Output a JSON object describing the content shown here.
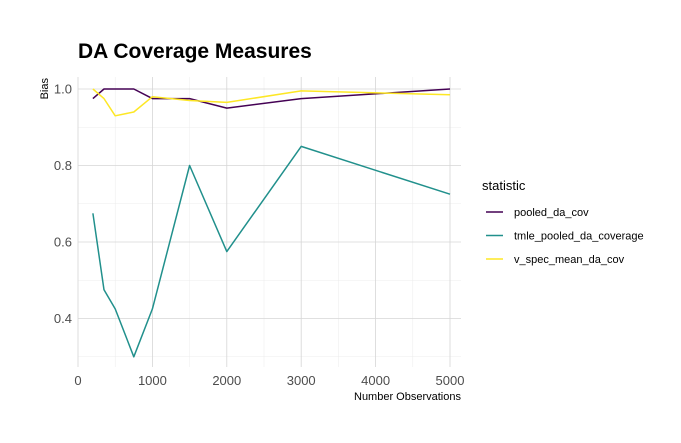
{
  "chart_data": {
    "type": "line",
    "title": "DA Coverage Measures",
    "xlabel": "Number Observations",
    "ylabel": "Bias",
    "xlim": [
      0,
      5200
    ],
    "ylim": [
      0.28,
      1.03
    ],
    "x_ticks": [
      0,
      1000,
      2000,
      3000,
      4000,
      5000
    ],
    "y_ticks": [
      0.4,
      0.6,
      0.8,
      1.0
    ],
    "x_tick_labels": [
      "0",
      "1000",
      "2000",
      "3000",
      "4000",
      "5000"
    ],
    "y_tick_labels": [
      "0.4",
      "0.6",
      "0.8",
      "1.0"
    ],
    "grid": true,
    "legend": {
      "title": "statistic",
      "position": "right"
    },
    "series": [
      {
        "name": "pooled_da_cov",
        "color": "#440154",
        "x": [
          200,
          350,
          500,
          750,
          1000,
          1500,
          2000,
          3000,
          5000
        ],
        "y": [
          0.975,
          1.0,
          1.0,
          1.0,
          0.975,
          0.975,
          0.95,
          0.975,
          1.0
        ]
      },
      {
        "name": "tmle_pooled_da_coverage",
        "color": "#21908C",
        "x": [
          200,
          350,
          500,
          750,
          1000,
          1500,
          2000,
          3000,
          5000
        ],
        "y": [
          0.675,
          0.475,
          0.425,
          0.3,
          0.425,
          0.8,
          0.575,
          0.85,
          0.725
        ]
      },
      {
        "name": "v_spec_mean_da_cov",
        "color": "#FDE725",
        "x": [
          200,
          350,
          500,
          750,
          1000,
          1500,
          2000,
          3000,
          5000
        ],
        "y": [
          1.0,
          0.975,
          0.93,
          0.94,
          0.98,
          0.97,
          0.965,
          0.995,
          0.985
        ]
      }
    ]
  }
}
